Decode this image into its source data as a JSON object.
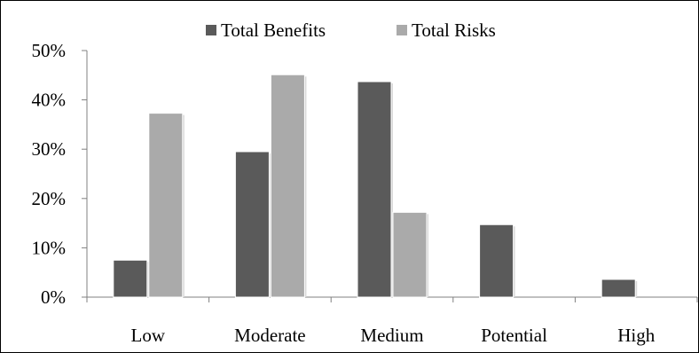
{
  "chart_data": {
    "type": "bar",
    "title": "",
    "xlabel": "",
    "ylabel": "",
    "categories": [
      "Low",
      "Moderate",
      "Medium",
      "Potential",
      "High"
    ],
    "series": [
      {
        "name": "Total Benefits",
        "values": [
          7.5,
          29.5,
          43.7,
          14.7,
          3.6
        ],
        "color": "#5a5a5a"
      },
      {
        "name": "Total Risks",
        "values": [
          37.3,
          45.1,
          17.2,
          0,
          0
        ],
        "color": "#aaaaaa"
      }
    ],
    "ylim": [
      0,
      50
    ],
    "yticks": [
      "0%",
      "10%",
      "20%",
      "30%",
      "40%",
      "50%"
    ],
    "grid": false,
    "legend_position": "top-center"
  }
}
